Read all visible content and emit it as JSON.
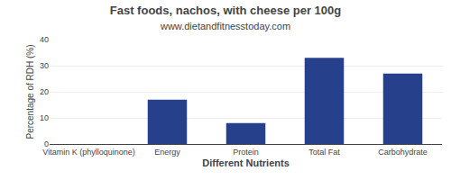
{
  "chart_data": {
    "type": "bar",
    "title": "Fast foods, nachos, with cheese per 100g",
    "subtitle": "www.dietandfitnesstoday.com",
    "xlabel": "Different Nutrients",
    "ylabel": "Percentage of RDH (%)",
    "categories": [
      "Vitamin K (phylloquinone)",
      "Energy",
      "Protein",
      "Total Fat",
      "Carbohydrate"
    ],
    "values": [
      0,
      17,
      8,
      33,
      27
    ],
    "color": "#27408B",
    "ylim": [
      0,
      40
    ],
    "yticks": [
      0,
      10,
      20,
      30,
      40
    ],
    "grid": true
  }
}
